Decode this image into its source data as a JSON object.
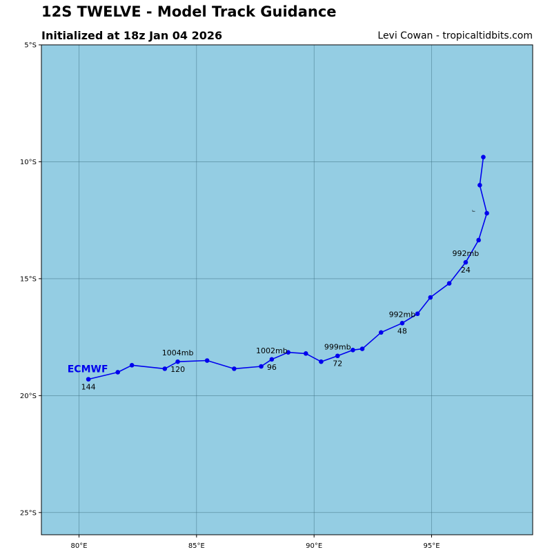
{
  "header": {
    "title": "12S TWELVE - Model Track Guidance",
    "subtitle": "Initialized at 18z Jan 04 2026",
    "credit": "Levi Cowan - tropicaltidbits.com"
  },
  "colors": {
    "ocean": "#94cde3",
    "track": "#0000ee",
    "grid": "#3d6f82"
  },
  "map_extent": {
    "lon_min": 78.4,
    "lon_max": 99.3,
    "lat_min": -25.95,
    "lat_max": -5
  },
  "axes": {
    "x_ticks": [
      {
        "value": 80,
        "label": "80°E"
      },
      {
        "value": 85,
        "label": "85°E"
      },
      {
        "value": 90,
        "label": "90°E"
      },
      {
        "value": 95,
        "label": "95°E"
      }
    ],
    "y_ticks": [
      {
        "value": -5,
        "label": "5°S"
      },
      {
        "value": -10,
        "label": "10°S"
      },
      {
        "value": -15,
        "label": "15°S"
      },
      {
        "value": -20,
        "label": "20°S"
      },
      {
        "value": -25,
        "label": "25°S"
      }
    ]
  },
  "chart_data": {
    "type": "line",
    "title": "12S TWELVE - Model Track Guidance",
    "series": [
      {
        "name": "ECMWF",
        "points": [
          {
            "lon": 97.2,
            "lat": -9.8
          },
          {
            "lon": 97.05,
            "lat": -11.0
          },
          {
            "lon": 97.35,
            "lat": -12.2
          },
          {
            "lon": 97.0,
            "lat": -13.35
          },
          {
            "lon": 96.45,
            "lat": -14.3
          },
          {
            "lon": 95.75,
            "lat": -15.2
          },
          {
            "lon": 94.95,
            "lat": -15.8
          },
          {
            "lon": 94.4,
            "lat": -16.5
          },
          {
            "lon": 93.75,
            "lat": -16.9
          },
          {
            "lon": 92.85,
            "lat": -17.3
          },
          {
            "lon": 92.05,
            "lat": -18.0
          },
          {
            "lon": 91.65,
            "lat": -18.05
          },
          {
            "lon": 91.0,
            "lat": -18.3
          },
          {
            "lon": 90.3,
            "lat": -18.55
          },
          {
            "lon": 89.65,
            "lat": -18.2
          },
          {
            "lon": 88.9,
            "lat": -18.15
          },
          {
            "lon": 88.2,
            "lat": -18.45
          },
          {
            "lon": 87.75,
            "lat": -18.75
          },
          {
            "lon": 86.6,
            "lat": -18.85
          },
          {
            "lon": 85.45,
            "lat": -18.5
          },
          {
            "lon": 84.2,
            "lat": -18.55
          },
          {
            "lon": 83.65,
            "lat": -18.85
          },
          {
            "lon": 82.25,
            "lat": -18.7
          },
          {
            "lon": 81.65,
            "lat": -19.0
          },
          {
            "lon": 80.4,
            "lat": -19.3
          }
        ],
        "hour_labels": [
          {
            "text": "24",
            "lon": 96.45,
            "lat": -14.3
          },
          {
            "text": "48",
            "lon": 93.75,
            "lat": -16.9
          },
          {
            "text": "72",
            "lon": 91.0,
            "lat": -18.3
          },
          {
            "text": "96",
            "lon": 88.2,
            "lat": -18.45
          },
          {
            "text": "120",
            "lon": 84.2,
            "lat": -18.55
          },
          {
            "text": "144",
            "lon": 80.4,
            "lat": -19.3
          }
        ],
        "pressure_labels": [
          {
            "text": "992mb",
            "lon": 96.45,
            "lat": -14.3
          },
          {
            "text": "992mb",
            "lon": 93.75,
            "lat": -16.9
          },
          {
            "text": "999mb",
            "lon": 91.0,
            "lat": -18.3
          },
          {
            "text": "1002mb",
            "lon": 88.2,
            "lat": -18.45
          },
          {
            "text": "1004mb",
            "lon": 84.2,
            "lat": -18.55
          }
        ],
        "annotations": [
          {
            "text": "r",
            "lon": 96.85,
            "lat": -12.1
          }
        ]
      }
    ]
  }
}
